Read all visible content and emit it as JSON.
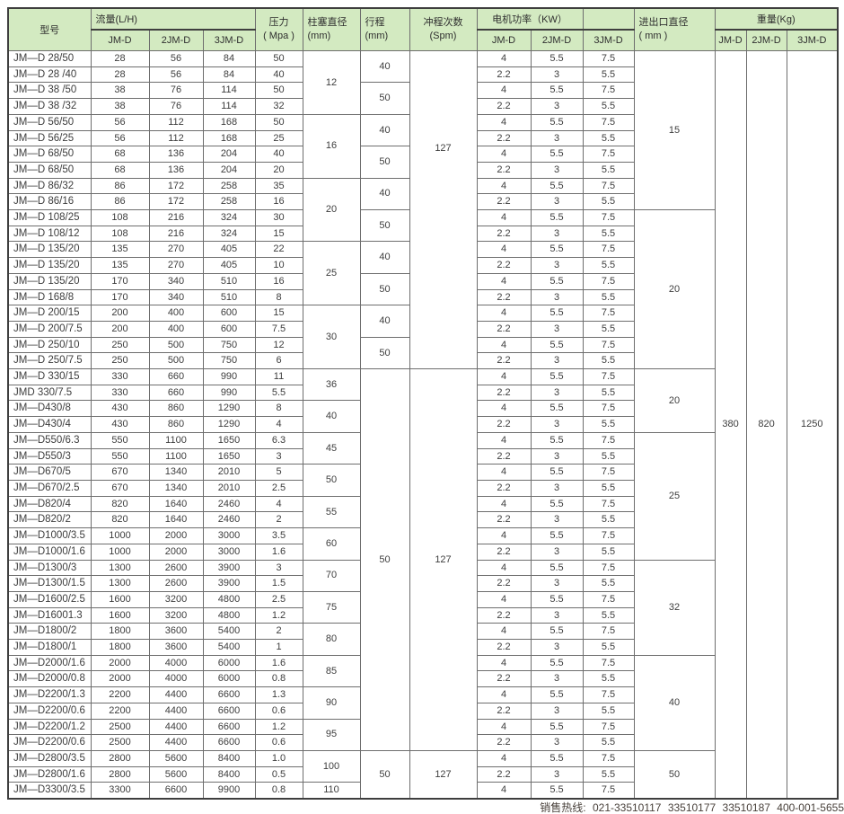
{
  "colors": {
    "header_green": "#d3eac1",
    "grid_line": "#6e6e6e",
    "outer_border": "#3e3e3e",
    "text": "#3d3d3d",
    "hotline_text": "#473f39"
  },
  "table": {
    "header": {
      "model": "型号",
      "flow": "流量(L/H)",
      "pressure_l1": "压力",
      "pressure_l2": "( Mpa )",
      "plunger_l1": "柱塞直径",
      "plunger_l2": "(mm)",
      "stroke_l1": "行程",
      "stroke_l2": "(mm)",
      "spm_l1": "冲程次数",
      "spm_l2": "(Spm)",
      "motor": "电机功率（KW）",
      "inlet_l1": "进出口直径",
      "inlet_l2": "( mm )",
      "weight": "重量(Kg)",
      "sub_jmd": "JM-D",
      "sub_2jmd": "2JM-D",
      "sub_3jmd": "3JM-D"
    },
    "row_columns": [
      "model",
      "flow_jmd",
      "flow_2jmd",
      "flow_3jmd",
      "pressure_mpa",
      "motor_jmd_kw",
      "motor_2jmd_kw",
      "motor_3jmd_kw"
    ],
    "rows": [
      [
        "JM—D 28/50",
        "28",
        "56",
        "84",
        "50",
        "4",
        "5.5",
        "7.5"
      ],
      [
        "JM—D 28 /40",
        "28",
        "56",
        "84",
        "40",
        "2.2",
        "3",
        "5.5"
      ],
      [
        "JM—D 38 /50",
        "38",
        "76",
        "114",
        "50",
        "4",
        "5.5",
        "7.5"
      ],
      [
        "JM—D 38 /32",
        "38",
        "76",
        "114",
        "32",
        "2.2",
        "3",
        "5.5"
      ],
      [
        "JM—D 56/50",
        "56",
        "112",
        "168",
        "50",
        "4",
        "5.5",
        "7.5"
      ],
      [
        "JM—D 56/25",
        "56",
        "112",
        "168",
        "25",
        "2.2",
        "3",
        "5.5"
      ],
      [
        "JM—D 68/50",
        "68",
        "136",
        "204",
        "40",
        "4",
        "5.5",
        "7.5"
      ],
      [
        "JM—D 68/50",
        "68",
        "136",
        "204",
        "20",
        "2.2",
        "3",
        "5.5"
      ],
      [
        "JM—D 86/32",
        "86",
        "172",
        "258",
        "35",
        "4",
        "5.5",
        "7.5"
      ],
      [
        "JM—D 86/16",
        "86",
        "172",
        "258",
        "16",
        "2.2",
        "3",
        "5.5"
      ],
      [
        "JM—D 108/25",
        "108",
        "216",
        "324",
        "30",
        "4",
        "5.5",
        "7.5"
      ],
      [
        "JM—D 108/12",
        "108",
        "216",
        "324",
        "15",
        "2.2",
        "3",
        "5.5"
      ],
      [
        "JM—D 135/20",
        "135",
        "270",
        "405",
        "22",
        "4",
        "5.5",
        "7.5"
      ],
      [
        "JM—D 135/20",
        "135",
        "270",
        "405",
        "10",
        "2.2",
        "3",
        "5.5"
      ],
      [
        "JM—D 135/20",
        "170",
        "340",
        "510",
        "16",
        "4",
        "5.5",
        "7.5"
      ],
      [
        "JM—D 168/8",
        "170",
        "340",
        "510",
        "8",
        "2.2",
        "3",
        "5.5"
      ],
      [
        "JM—D 200/15",
        "200",
        "400",
        "600",
        "15",
        "4",
        "5.5",
        "7.5"
      ],
      [
        "JM—D 200/7.5",
        "200",
        "400",
        "600",
        "7.5",
        "2.2",
        "3",
        "5.5"
      ],
      [
        "JM—D 250/10",
        "250",
        "500",
        "750",
        "12",
        "4",
        "5.5",
        "7.5"
      ],
      [
        "JM—D 250/7.5",
        "250",
        "500",
        "750",
        "6",
        "2.2",
        "3",
        "5.5"
      ],
      [
        "JM—D 330/15",
        "330",
        "660",
        "990",
        "11",
        "4",
        "5.5",
        "7.5"
      ],
      [
        "JMD 330/7.5",
        "330",
        "660",
        "990",
        "5.5",
        "2.2",
        "3",
        "5.5"
      ],
      [
        "JM—D430/8",
        "430",
        "860",
        "1290",
        "8",
        "4",
        "5.5",
        "7.5"
      ],
      [
        "JM—D430/4",
        "430",
        "860",
        "1290",
        "4",
        "2.2",
        "3",
        "5.5"
      ],
      [
        "JM—D550/6.3",
        "550",
        "1100",
        "1650",
        "6.3",
        "4",
        "5.5",
        "7.5"
      ],
      [
        "JM—D550/3",
        "550",
        "1100",
        "1650",
        "3",
        "2.2",
        "3",
        "5.5"
      ],
      [
        "JM—D670/5",
        "670",
        "1340",
        "2010",
        "5",
        "4",
        "5.5",
        "7.5"
      ],
      [
        "JM—D670/2.5",
        "670",
        "1340",
        "2010",
        "2.5",
        "2.2",
        "3",
        "5.5"
      ],
      [
        "JM—D820/4",
        "820",
        "1640",
        "2460",
        "4",
        "4",
        "5.5",
        "7.5"
      ],
      [
        "JM—D820/2",
        "820",
        "1640",
        "2460",
        "2",
        "2.2",
        "3",
        "5.5"
      ],
      [
        "JM—D1000/3.5",
        "1000",
        "2000",
        "3000",
        "3.5",
        "4",
        "5.5",
        "7.5"
      ],
      [
        "JM—D1000/1.6",
        "1000",
        "2000",
        "3000",
        "1.6",
        "2.2",
        "3",
        "5.5"
      ],
      [
        "JM—D1300/3",
        "1300",
        "2600",
        "3900",
        "3",
        "4",
        "5.5",
        "7.5"
      ],
      [
        "JM—D1300/1.5",
        "1300",
        "2600",
        "3900",
        "1.5",
        "2.2",
        "3",
        "5.5"
      ],
      [
        "JM—D1600/2.5",
        "1600",
        "3200",
        "4800",
        "2.5",
        "4",
        "5.5",
        "7.5"
      ],
      [
        "JM—D16001.3",
        "1600",
        "3200",
        "4800",
        "1.2",
        "2.2",
        "3",
        "5.5"
      ],
      [
        "JM—D1800/2",
        "1800",
        "3600",
        "5400",
        "2",
        "4",
        "5.5",
        "7.5"
      ],
      [
        "JM—D1800/1",
        "1800",
        "3600",
        "5400",
        "1",
        "2.2",
        "3",
        "5.5"
      ],
      [
        "JM—D2000/1.6",
        "2000",
        "4000",
        "6000",
        "1.6",
        "4",
        "5.5",
        "7.5"
      ],
      [
        "JM—D2000/0.8",
        "2000",
        "4000",
        "6000",
        "0.8",
        "2.2",
        "3",
        "5.5"
      ],
      [
        "JM—D2200/1.3",
        "2200",
        "4400",
        "6600",
        "1.3",
        "4",
        "5.5",
        "7.5"
      ],
      [
        "JM—D2200/0.6",
        "2200",
        "4400",
        "6600",
        "0.6",
        "2.2",
        "3",
        "5.5"
      ],
      [
        "JM—D2200/1.2",
        "2500",
        "4400",
        "6600",
        "1.2",
        "4",
        "5.5",
        "7.5"
      ],
      [
        "JM—D2200/0.6",
        "2500",
        "4400",
        "6600",
        "0.6",
        "2.2",
        "3",
        "5.5"
      ],
      [
        "JM—D2800/3.5",
        "2800",
        "5600",
        "8400",
        "1.0",
        "4",
        "5.5",
        "7.5"
      ],
      [
        "JM—D2800/1.6",
        "2800",
        "5600",
        "8400",
        "0.5",
        "2.2",
        "3",
        "5.5"
      ],
      [
        "JM—D3300/3.5",
        "3300",
        "6600",
        "9900",
        "0.8",
        "4",
        "5.5",
        "7.5"
      ]
    ],
    "merged": {
      "plunger": [
        [
          "12",
          4
        ],
        [
          "16",
          4
        ],
        [
          "20",
          4
        ],
        [
          "25",
          4
        ],
        [
          "30",
          4
        ],
        [
          "36",
          2
        ],
        [
          "40",
          2
        ],
        [
          "45",
          2
        ],
        [
          "50",
          2
        ],
        [
          "55",
          2
        ],
        [
          "60",
          2
        ],
        [
          "70",
          2
        ],
        [
          "75",
          2
        ],
        [
          "80",
          2
        ],
        [
          "85",
          2
        ],
        [
          "90",
          2
        ],
        [
          "95",
          2
        ],
        [
          "100",
          2
        ],
        [
          "110",
          1
        ]
      ],
      "stroke": [
        [
          "40",
          2
        ],
        [
          "50",
          2
        ],
        [
          "40",
          2
        ],
        [
          "50",
          2
        ],
        [
          "40",
          2
        ],
        [
          "50",
          2
        ],
        [
          "40",
          2
        ],
        [
          "50",
          2
        ],
        [
          "40",
          2
        ],
        [
          "50",
          2
        ],
        [
          "50",
          24
        ],
        [
          "50",
          3
        ]
      ],
      "spm": [
        [
          "127",
          20
        ],
        [
          "127",
          24
        ],
        [
          "127",
          3
        ]
      ],
      "inlet": [
        [
          "15",
          10
        ],
        [
          "20",
          10
        ],
        [
          "20",
          4
        ],
        [
          "25",
          8
        ],
        [
          "32",
          6
        ],
        [
          "40",
          6
        ],
        [
          "50",
          3
        ]
      ]
    },
    "weight_row": [
      "380",
      "820",
      "1250"
    ]
  },
  "footer": {
    "hotline": "销售热线: 021-33510117 33510177 33510187 400-001-5655"
  }
}
